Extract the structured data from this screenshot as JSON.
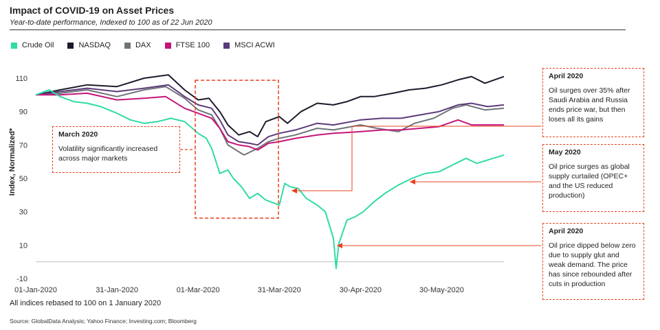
{
  "header": {
    "title": "Impact of COVID-19 on Asset Prices",
    "subtitle": "Year-to-date performance, Indexed to 100 as of 22 Jun 2020"
  },
  "footnote": "All indices rebased to 100 on 1 January  2020",
  "source": "Source: GlobalData Analysis; Yahoo Finance; Investing.com; Bloomberg",
  "annotations": [
    {
      "title": "March 2020",
      "text": "Volatility significantly increased across major markets"
    },
    {
      "title": "April 2020",
      "text": "Oil surges over 35%  after Saudi Arabia and Russia ends price war, but then loses all its gains"
    },
    {
      "title": "May 2020",
      "text": "Oil price surges as global supply curtailed (OPEC+ and the US reduced production)"
    },
    {
      "title": "April 2020",
      "text": "Oil price dipped below zero due to supply glut and weak demand. The price has since rebounded after cuts in production"
    }
  ],
  "colors": {
    "crude_oil": "#2edba5",
    "nasdaq": "#1c1a2b",
    "dax": "#6f7479",
    "ftse": "#c5147a",
    "msci": "#5b3a78",
    "annotation": "#e8401c"
  },
  "chart_data": {
    "type": "line",
    "title": "Impact of COVID-19 on Asset Prices",
    "subtitle": "Year-to-date performance, Indexed to 100 as of 22 Jun 2020",
    "xlabel": "",
    "ylabel": "Index, Normalized*",
    "x_tick_labels": [
      "01-Jan-2020",
      "31-Jan-2020",
      "01-Mar-2020",
      "31-Mar-2020",
      "30-Apr-2020",
      "30-May-2020"
    ],
    "y_ticks": [
      110,
      90,
      70,
      50,
      30,
      10,
      -10
    ],
    "ylim": [
      -10,
      115
    ],
    "xlim": [
      "2020-01-01",
      "2020-06-22"
    ],
    "legend_position": "top-left",
    "grid": false,
    "series": [
      {
        "name": "Crude Oil",
        "color": "#2edba5",
        "points": [
          [
            "2020-01-01",
            100
          ],
          [
            "2020-01-06",
            103
          ],
          [
            "2020-01-10",
            99
          ],
          [
            "2020-01-15",
            96
          ],
          [
            "2020-01-20",
            95
          ],
          [
            "2020-01-25",
            93
          ],
          [
            "2020-01-31",
            89
          ],
          [
            "2020-02-05",
            85
          ],
          [
            "2020-02-10",
            83
          ],
          [
            "2020-02-15",
            84
          ],
          [
            "2020-02-20",
            86
          ],
          [
            "2020-02-25",
            84
          ],
          [
            "2020-03-01",
            77
          ],
          [
            "2020-03-04",
            74
          ],
          [
            "2020-03-06",
            68
          ],
          [
            "2020-03-09",
            53
          ],
          [
            "2020-03-12",
            55
          ],
          [
            "2020-03-14",
            50
          ],
          [
            "2020-03-17",
            45
          ],
          [
            "2020-03-20",
            38
          ],
          [
            "2020-03-23",
            41
          ],
          [
            "2020-03-26",
            37
          ],
          [
            "2020-03-31",
            34
          ],
          [
            "2020-04-02",
            47
          ],
          [
            "2020-04-04",
            45
          ],
          [
            "2020-04-07",
            44
          ],
          [
            "2020-04-10",
            38
          ],
          [
            "2020-04-14",
            34
          ],
          [
            "2020-04-17",
            30
          ],
          [
            "2020-04-20",
            14
          ],
          [
            "2020-04-21",
            -4
          ],
          [
            "2020-04-22",
            11
          ],
          [
            "2020-04-25",
            25
          ],
          [
            "2020-04-28",
            27
          ],
          [
            "2020-05-01",
            30
          ],
          [
            "2020-05-05",
            36
          ],
          [
            "2020-05-09",
            41
          ],
          [
            "2020-05-14",
            46
          ],
          [
            "2020-05-19",
            50
          ],
          [
            "2020-05-24",
            53
          ],
          [
            "2020-05-29",
            54
          ],
          [
            "2020-06-03",
            58
          ],
          [
            "2020-06-08",
            62
          ],
          [
            "2020-06-12",
            59
          ],
          [
            "2020-06-16",
            61
          ],
          [
            "2020-06-22",
            64
          ]
        ]
      },
      {
        "name": "NASDAQ",
        "color": "#1c1a2b",
        "points": [
          [
            "2020-01-01",
            100
          ],
          [
            "2020-01-10",
            103
          ],
          [
            "2020-01-20",
            106
          ],
          [
            "2020-01-31",
            105
          ],
          [
            "2020-02-10",
            110
          ],
          [
            "2020-02-19",
            112
          ],
          [
            "2020-02-25",
            103
          ],
          [
            "2020-03-01",
            97
          ],
          [
            "2020-03-05",
            98
          ],
          [
            "2020-03-09",
            90
          ],
          [
            "2020-03-12",
            82
          ],
          [
            "2020-03-16",
            76
          ],
          [
            "2020-03-20",
            78
          ],
          [
            "2020-03-23",
            75
          ],
          [
            "2020-03-26",
            84
          ],
          [
            "2020-03-31",
            87
          ],
          [
            "2020-04-03",
            83
          ],
          [
            "2020-04-08",
            90
          ],
          [
            "2020-04-14",
            95
          ],
          [
            "2020-04-20",
            94
          ],
          [
            "2020-04-25",
            96
          ],
          [
            "2020-04-30",
            99
          ],
          [
            "2020-05-05",
            99
          ],
          [
            "2020-05-12",
            101
          ],
          [
            "2020-05-18",
            103
          ],
          [
            "2020-05-24",
            104
          ],
          [
            "2020-05-30",
            106
          ],
          [
            "2020-06-05",
            109
          ],
          [
            "2020-06-10",
            111
          ],
          [
            "2020-06-15",
            107
          ],
          [
            "2020-06-22",
            111
          ]
        ]
      },
      {
        "name": "DAX",
        "color": "#6f7479",
        "points": [
          [
            "2020-01-01",
            100
          ],
          [
            "2020-01-10",
            101
          ],
          [
            "2020-01-20",
            103
          ],
          [
            "2020-01-31",
            99
          ],
          [
            "2020-02-10",
            103
          ],
          [
            "2020-02-18",
            105
          ],
          [
            "2020-02-25",
            98
          ],
          [
            "2020-03-01",
            91
          ],
          [
            "2020-03-06",
            88
          ],
          [
            "2020-03-09",
            80
          ],
          [
            "2020-03-12",
            70
          ],
          [
            "2020-03-16",
            66
          ],
          [
            "2020-03-18",
            64
          ],
          [
            "2020-03-23",
            68
          ],
          [
            "2020-03-27",
            72
          ],
          [
            "2020-03-31",
            74
          ],
          [
            "2020-04-06",
            76
          ],
          [
            "2020-04-14",
            80
          ],
          [
            "2020-04-20",
            79
          ],
          [
            "2020-04-30",
            82
          ],
          [
            "2020-05-06",
            80
          ],
          [
            "2020-05-14",
            78
          ],
          [
            "2020-05-20",
            83
          ],
          [
            "2020-05-27",
            86
          ],
          [
            "2020-06-03",
            92
          ],
          [
            "2020-06-08",
            94
          ],
          [
            "2020-06-15",
            91
          ],
          [
            "2020-06-22",
            92
          ]
        ]
      },
      {
        "name": "FTSE 100",
        "color": "#c5147a",
        "points": [
          [
            "2020-01-01",
            100
          ],
          [
            "2020-01-10",
            100
          ],
          [
            "2020-01-20",
            101
          ],
          [
            "2020-01-31",
            97
          ],
          [
            "2020-02-10",
            98
          ],
          [
            "2020-02-18",
            99
          ],
          [
            "2020-02-25",
            92
          ],
          [
            "2020-03-01",
            89
          ],
          [
            "2020-03-06",
            86
          ],
          [
            "2020-03-09",
            80
          ],
          [
            "2020-03-12",
            72
          ],
          [
            "2020-03-16",
            70
          ],
          [
            "2020-03-20",
            69
          ],
          [
            "2020-03-23",
            67
          ],
          [
            "2020-03-27",
            71
          ],
          [
            "2020-03-31",
            72
          ],
          [
            "2020-04-06",
            74
          ],
          [
            "2020-04-14",
            76
          ],
          [
            "2020-04-20",
            77
          ],
          [
            "2020-04-30",
            78
          ],
          [
            "2020-05-08",
            79
          ],
          [
            "2020-05-15",
            79
          ],
          [
            "2020-05-22",
            80
          ],
          [
            "2020-05-29",
            81
          ],
          [
            "2020-06-05",
            85
          ],
          [
            "2020-06-10",
            82
          ],
          [
            "2020-06-16",
            82
          ],
          [
            "2020-06-22",
            82
          ]
        ]
      },
      {
        "name": "MSCI ACWI",
        "color": "#5b3a78",
        "points": [
          [
            "2020-01-01",
            100
          ],
          [
            "2020-01-10",
            102
          ],
          [
            "2020-01-20",
            104
          ],
          [
            "2020-01-31",
            102
          ],
          [
            "2020-02-10",
            104
          ],
          [
            "2020-02-19",
            106
          ],
          [
            "2020-02-25",
            99
          ],
          [
            "2020-03-01",
            94
          ],
          [
            "2020-03-06",
            92
          ],
          [
            "2020-03-09",
            85
          ],
          [
            "2020-03-12",
            76
          ],
          [
            "2020-03-16",
            72
          ],
          [
            "2020-03-20",
            71
          ],
          [
            "2020-03-23",
            70
          ],
          [
            "2020-03-27",
            75
          ],
          [
            "2020-03-31",
            77
          ],
          [
            "2020-04-06",
            79
          ],
          [
            "2020-04-14",
            83
          ],
          [
            "2020-04-20",
            82
          ],
          [
            "2020-04-30",
            85
          ],
          [
            "2020-05-08",
            86
          ],
          [
            "2020-05-15",
            86
          ],
          [
            "2020-05-22",
            88
          ],
          [
            "2020-05-29",
            90
          ],
          [
            "2020-06-05",
            94
          ],
          [
            "2020-06-10",
            95
          ],
          [
            "2020-06-16",
            93
          ],
          [
            "2020-06-22",
            94
          ]
        ]
      }
    ]
  }
}
